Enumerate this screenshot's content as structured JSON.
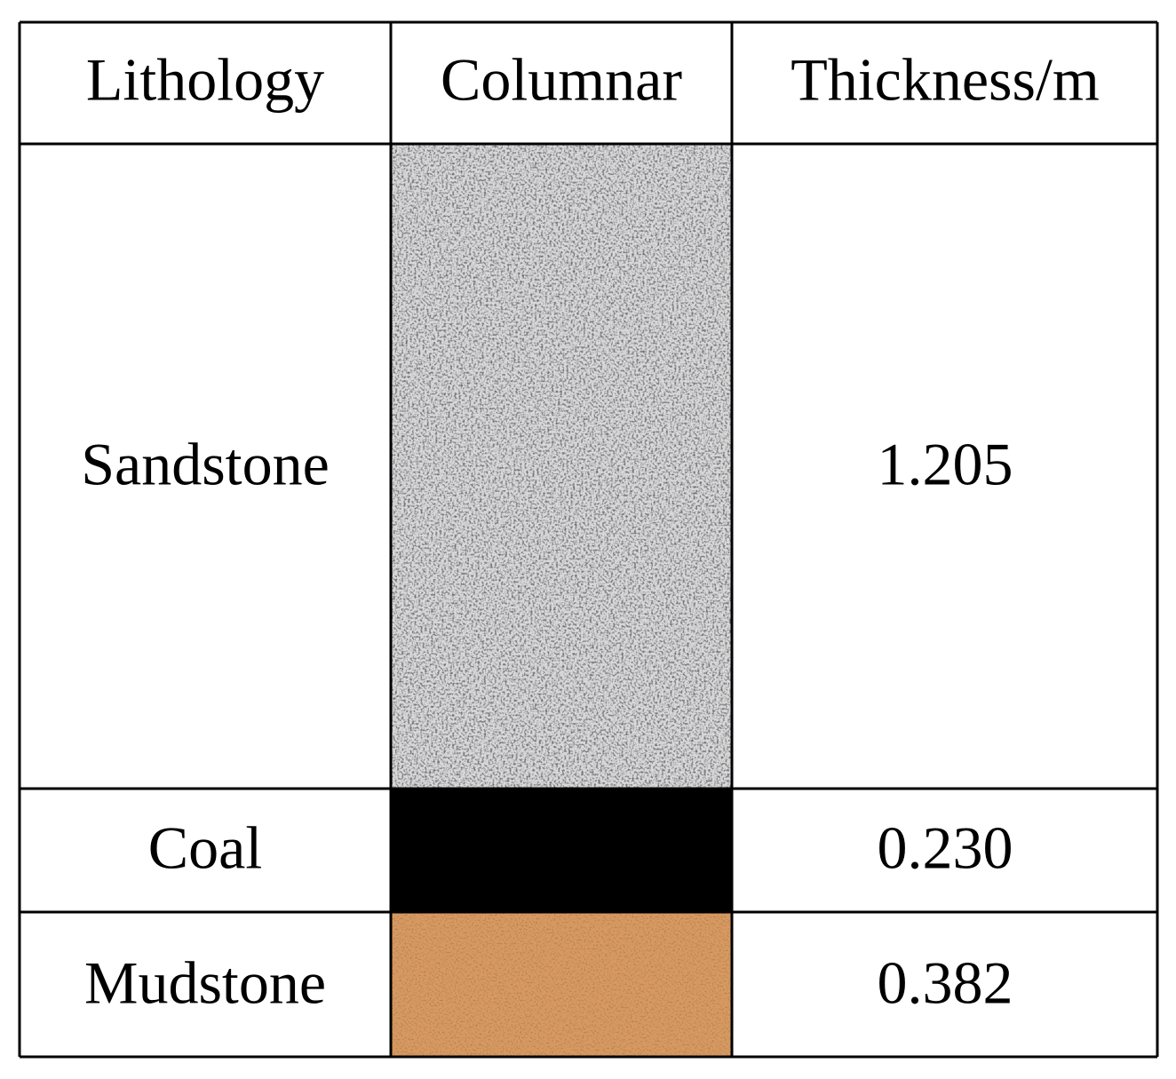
{
  "table": {
    "header": [
      "Lithology",
      "Columnar",
      "Thickness/m"
    ],
    "rows": [
      [
        "Sandstone",
        "1.205"
      ],
      [
        "Coal",
        "0.230"
      ],
      [
        "Mudstone",
        "0.382"
      ]
    ]
  }
}
